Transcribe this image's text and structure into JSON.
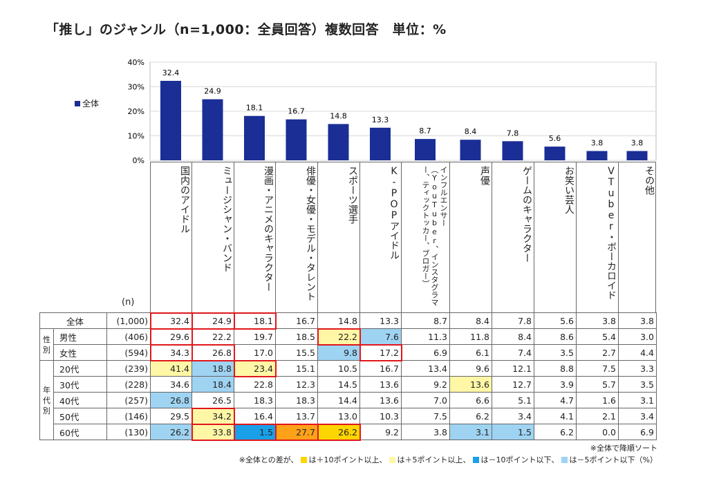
{
  "title": "「推し」のジャンル（n=1,000：全員回答）複数回答　単位：%",
  "legend_label": "全体",
  "n_label": "(n)",
  "colors": {
    "bar": "#1a2e96",
    "plus10": "#ffd500",
    "plus5": "#fff7a6",
    "minus10": "#1aa0e8",
    "minus5": "#9fd3f2",
    "highlight_box": "#e0161b"
  },
  "chart_data": {
    "type": "bar",
    "categories": [
      "国内のアイドル",
      "ミュージシャン・バンド",
      "漫画・アニメのキャラクター",
      "俳優・女優・モデル・タレント",
      "スポーツ選手",
      "K-POPアイドル",
      "インフルエンサー（YouTuber、インスタグラマー、ティックトッカー、ブロガー）",
      "声優",
      "ゲームのキャラクター",
      "お笑い芸人",
      "VTuber・ボーカロイド",
      "その他"
    ],
    "series": [
      {
        "name": "全体",
        "values": [
          32.4,
          24.9,
          18.1,
          16.7,
          14.8,
          13.3,
          8.7,
          8.4,
          7.8,
          5.6,
          3.8,
          3.8
        ]
      }
    ],
    "yticks": [
      "40%",
      "30%",
      "20%",
      "10%",
      "0%"
    ],
    "ylim": [
      0,
      40
    ],
    "grid": true
  },
  "headers": [
    {
      "text": "国内のアイドル",
      "small": false
    },
    {
      "text": "ミュージシャン・バンド",
      "small": false
    },
    {
      "text": "漫画・アニメのキャラクター",
      "small": false
    },
    {
      "text": "俳優・女優・モデル・タレント",
      "small": false
    },
    {
      "text": "スポーツ選手",
      "small": false
    },
    {
      "text": "K-POPアイドル",
      "small": false
    },
    {
      "text": "インフルエンサー（YouTuber、インスタグラマー、ティックトッカー、ブロガー）",
      "small": true
    },
    {
      "text": "声優",
      "small": false
    },
    {
      "text": "ゲームのキャラクター",
      "small": false
    },
    {
      "text": "お笑い芸人",
      "small": false
    },
    {
      "text": "VTuber・ボーカロイド",
      "small": false
    },
    {
      "text": "その他",
      "small": false
    }
  ],
  "groups": {
    "gender": "性別",
    "age": "年代別"
  },
  "rows": [
    {
      "label": "全体",
      "n": "(1,000)",
      "values": [
        "32.4",
        "24.9",
        "18.1",
        "16.7",
        "14.8",
        "13.3",
        "8.7",
        "8.4",
        "7.8",
        "5.6",
        "3.8",
        "3.8"
      ],
      "shade": [
        "",
        "",
        "",
        "",
        "",
        "",
        "",
        "",
        "",
        "",
        "",
        ""
      ],
      "boxed": [
        1,
        1,
        1,
        0,
        0,
        0,
        0,
        0,
        0,
        0,
        0,
        0
      ]
    },
    {
      "label": "男性",
      "n": "(406)",
      "values": [
        "29.6",
        "22.2",
        "19.7",
        "18.5",
        "22.2",
        "7.6",
        "11.3",
        "11.8",
        "8.4",
        "8.6",
        "5.4",
        "3.0"
      ],
      "shade": [
        "",
        "",
        "",
        "",
        "y",
        "lb",
        "",
        "",
        "",
        "",
        "",
        ""
      ],
      "boxed": [
        1,
        0,
        0,
        0,
        1,
        0,
        0,
        0,
        0,
        0,
        0,
        0
      ]
    },
    {
      "label": "女性",
      "n": "(594)",
      "values": [
        "34.3",
        "26.8",
        "17.0",
        "15.5",
        "9.8",
        "17.2",
        "6.9",
        "6.1",
        "7.4",
        "3.5",
        "2.7",
        "4.4"
      ],
      "shade": [
        "",
        "",
        "",
        "",
        "lb",
        "",
        "",
        "",
        "",
        "",
        "",
        ""
      ],
      "boxed": [
        1,
        1,
        0,
        0,
        0,
        1,
        0,
        0,
        0,
        0,
        0,
        0
      ]
    },
    {
      "label": "20代",
      "n": "(239)",
      "values": [
        "41.4",
        "18.8",
        "23.4",
        "15.1",
        "10.5",
        "16.7",
        "13.4",
        "9.6",
        "12.1",
        "8.8",
        "7.5",
        "3.3"
      ],
      "shade": [
        "y",
        "lb",
        "y",
        "",
        "",
        "",
        "",
        "",
        "",
        "",
        "",
        ""
      ],
      "boxed": [
        0,
        0,
        1,
        0,
        0,
        0,
        0,
        0,
        0,
        0,
        0,
        0
      ]
    },
    {
      "label": "30代",
      "n": "(228)",
      "values": [
        "34.6",
        "18.4",
        "22.8",
        "12.3",
        "14.5",
        "13.6",
        "9.2",
        "13.6",
        "12.7",
        "3.9",
        "5.7",
        "3.5"
      ],
      "shade": [
        "",
        "lb",
        "",
        "",
        "",
        "",
        "",
        "y",
        "",
        "",
        "",
        ""
      ],
      "boxed": [
        0,
        0,
        0,
        0,
        0,
        0,
        0,
        0,
        0,
        0,
        0,
        0
      ]
    },
    {
      "label": "40代",
      "n": "(257)",
      "values": [
        "26.8",
        "26.5",
        "18.3",
        "18.3",
        "14.4",
        "13.6",
        "7.0",
        "6.6",
        "5.1",
        "4.7",
        "1.6",
        "3.1"
      ],
      "shade": [
        "lb",
        "",
        "",
        "",
        "",
        "",
        "",
        "",
        "",
        "",
        "",
        ""
      ],
      "boxed": [
        0,
        0,
        0,
        0,
        0,
        0,
        0,
        0,
        0,
        0,
        0,
        0
      ]
    },
    {
      "label": "50代",
      "n": "(146)",
      "values": [
        "29.5",
        "34.2",
        "16.4",
        "13.7",
        "13.0",
        "10.3",
        "7.5",
        "6.2",
        "3.4",
        "4.1",
        "2.1",
        "3.4"
      ],
      "shade": [
        "",
        "y",
        "",
        "",
        "",
        "",
        "",
        "",
        "",
        "",
        "",
        ""
      ],
      "boxed": [
        0,
        1,
        0,
        0,
        0,
        0,
        0,
        0,
        0,
        0,
        0,
        0
      ]
    },
    {
      "label": "60代",
      "n": "(130)",
      "values": [
        "26.2",
        "33.8",
        "1.5",
        "27.7",
        "26.2",
        "9.2",
        "3.8",
        "3.1",
        "1.5",
        "6.2",
        "0.0",
        "6.9"
      ],
      "shade": [
        "lb",
        "y",
        "b",
        "o",
        "yo",
        "",
        "",
        "lb",
        "lb",
        "",
        "",
        ""
      ],
      "boxed": [
        0,
        1,
        1,
        1,
        1,
        0,
        0,
        0,
        0,
        0,
        0,
        0
      ]
    }
  ],
  "notes": {
    "sort": "※全体で降順ソート",
    "legend_prefix": "※全体との差が、",
    "plus10": "は＋10ポイント以上、",
    "plus5": "は＋5ポイント以上、",
    "minus10": "は－10ポイント以下、",
    "minus5": "は－5ポイント以下（%）"
  }
}
